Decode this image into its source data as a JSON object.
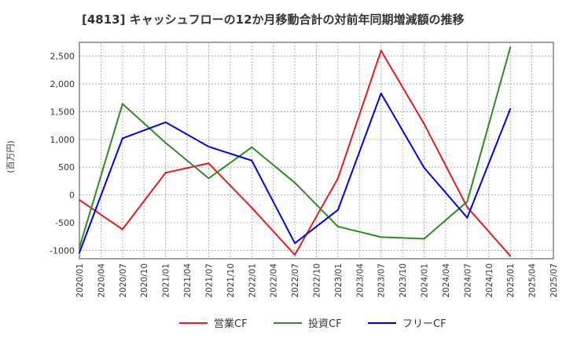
{
  "chart_data": {
    "type": "line",
    "title": "[4813]  キャッシュフローの12か月移動合計の対前年同期増減額の推移",
    "ylabel": "(百万円)",
    "xlabel": "",
    "ylim": [
      -1150,
      2750
    ],
    "yticks": [
      -1000,
      -500,
      0,
      500,
      1000,
      1500,
      2000,
      2500
    ],
    "ytick_labels": [
      "-1000",
      "-500",
      "0",
      "500",
      "1,000",
      "1,500",
      "2,000",
      "2,500"
    ],
    "x_categories": [
      "2020/01",
      "2020/04",
      "2020/07",
      "2020/10",
      "2021/01",
      "2021/04",
      "2021/07",
      "2021/10",
      "2022/01",
      "2022/04",
      "2022/07",
      "2022/10",
      "2023/01",
      "2023/04",
      "2023/07",
      "2023/10",
      "2024/01",
      "2024/04",
      "2024/07",
      "2024/10",
      "2025/01",
      "2025/04",
      "2025/07"
    ],
    "grid": true,
    "legend_position": "bottom",
    "series": [
      {
        "name": "営業CF",
        "color": "#e41a1c",
        "points": [
          [
            "2020/01",
            -90
          ],
          [
            "2020/07",
            -620
          ],
          [
            "2021/01",
            400
          ],
          [
            "2021/07",
            570
          ],
          [
            "2022/01",
            -230
          ],
          [
            "2022/07",
            -1080
          ],
          [
            "2023/01",
            300
          ],
          [
            "2023/07",
            2600
          ],
          [
            "2024/01",
            1280
          ],
          [
            "2024/07",
            -220
          ],
          [
            "2025/01",
            -1100
          ]
        ]
      },
      {
        "name": "投資CF",
        "color": "#2e8b22",
        "points": [
          [
            "2020/01",
            -950
          ],
          [
            "2020/07",
            1640
          ],
          [
            "2021/01",
            940
          ],
          [
            "2021/07",
            300
          ],
          [
            "2022/01",
            860
          ],
          [
            "2022/07",
            220
          ],
          [
            "2023/01",
            -570
          ],
          [
            "2023/07",
            -760
          ],
          [
            "2024/01",
            -790
          ],
          [
            "2024/07",
            -120
          ],
          [
            "2025/01",
            2660
          ]
        ]
      },
      {
        "name": "フリーCF",
        "color": "#0000dd",
        "points": [
          [
            "2020/01",
            -1040
          ],
          [
            "2020/07",
            1020
          ],
          [
            "2021/01",
            1310
          ],
          [
            "2021/07",
            870
          ],
          [
            "2022/01",
            620
          ],
          [
            "2022/07",
            -870
          ],
          [
            "2023/01",
            -270
          ],
          [
            "2023/07",
            1830
          ],
          [
            "2024/01",
            490
          ],
          [
            "2024/07",
            -410
          ],
          [
            "2025/01",
            1550
          ]
        ]
      }
    ]
  }
}
